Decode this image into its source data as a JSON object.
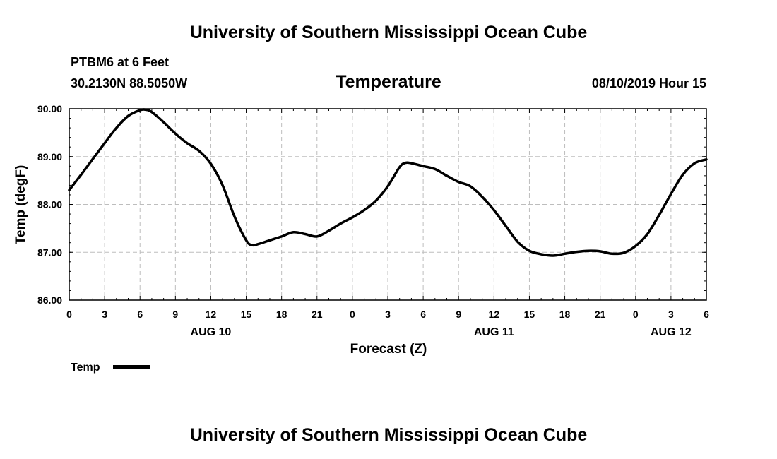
{
  "header": {
    "title": "University of Southern Mississippi Ocean Cube",
    "station": "PTBM6 at 6 Feet",
    "coords": "30.2130N 88.5050W",
    "plot_title": "Temperature",
    "timestamp": "08/10/2019 Hour 15"
  },
  "footer": {
    "title": "University of Southern Mississippi Ocean Cube"
  },
  "colors": {
    "line": "#000000",
    "grid": "#bdbdbd",
    "axis": "#000000"
  },
  "chart_data": {
    "type": "line",
    "title": "Temperature",
    "xlabel": "Forecast (Z)",
    "ylabel": "Temp (degF)",
    "ylim": [
      86.0,
      90.0
    ],
    "xlim_hours": [
      0,
      54
    ],
    "x_ticks": [
      {
        "h": 0,
        "label": "0"
      },
      {
        "h": 3,
        "label": "3"
      },
      {
        "h": 6,
        "label": "6"
      },
      {
        "h": 9,
        "label": "9"
      },
      {
        "h": 12,
        "label": "12"
      },
      {
        "h": 15,
        "label": "15"
      },
      {
        "h": 18,
        "label": "18"
      },
      {
        "h": 21,
        "label": "21"
      },
      {
        "h": 24,
        "label": "0"
      },
      {
        "h": 27,
        "label": "3"
      },
      {
        "h": 30,
        "label": "6"
      },
      {
        "h": 33,
        "label": "9"
      },
      {
        "h": 36,
        "label": "12"
      },
      {
        "h": 39,
        "label": "15"
      },
      {
        "h": 42,
        "label": "18"
      },
      {
        "h": 45,
        "label": "21"
      },
      {
        "h": 48,
        "label": "0"
      },
      {
        "h": 51,
        "label": "3"
      },
      {
        "h": 54,
        "label": "6"
      }
    ],
    "y_ticks": [
      {
        "v": 86.0,
        "label": "86.00"
      },
      {
        "v": 87.0,
        "label": "87.00"
      },
      {
        "v": 88.0,
        "label": "88.00"
      },
      {
        "v": 89.0,
        "label": "89.00"
      },
      {
        "v": 90.0,
        "label": "90.00"
      }
    ],
    "date_labels": [
      {
        "h": 12,
        "label": "AUG 10"
      },
      {
        "h": 36,
        "label": "AUG 11"
      },
      {
        "h": 51,
        "label": "AUG 12"
      }
    ],
    "legend": {
      "label": "Temp",
      "position": "bottom-left"
    },
    "series": [
      {
        "name": "Temp",
        "x": [
          0,
          1,
          2,
          3,
          4,
          5,
          6,
          6.5,
          7,
          8,
          9,
          10,
          11,
          12,
          13,
          14,
          15,
          15.5,
          16,
          17,
          18,
          19,
          20,
          21,
          22,
          23,
          24,
          25,
          26,
          27,
          28,
          28.5,
          29,
          30,
          31,
          32,
          33,
          34,
          35,
          36,
          37,
          38,
          39,
          40,
          41,
          42,
          43,
          44,
          45,
          46,
          47,
          48,
          49,
          50,
          51,
          52,
          53,
          54
        ],
        "y": [
          88.3,
          88.62,
          88.95,
          89.28,
          89.6,
          89.85,
          89.97,
          89.98,
          89.93,
          89.72,
          89.48,
          89.28,
          89.12,
          88.85,
          88.4,
          87.75,
          87.25,
          87.15,
          87.17,
          87.25,
          87.33,
          87.42,
          87.38,
          87.33,
          87.45,
          87.6,
          87.73,
          87.88,
          88.08,
          88.38,
          88.78,
          88.87,
          88.86,
          88.8,
          88.74,
          88.6,
          88.47,
          88.38,
          88.16,
          87.88,
          87.55,
          87.22,
          87.03,
          86.96,
          86.93,
          86.97,
          87.01,
          87.03,
          87.02,
          86.97,
          86.99,
          87.13,
          87.38,
          87.78,
          88.22,
          88.62,
          88.86,
          88.94
        ]
      }
    ]
  }
}
